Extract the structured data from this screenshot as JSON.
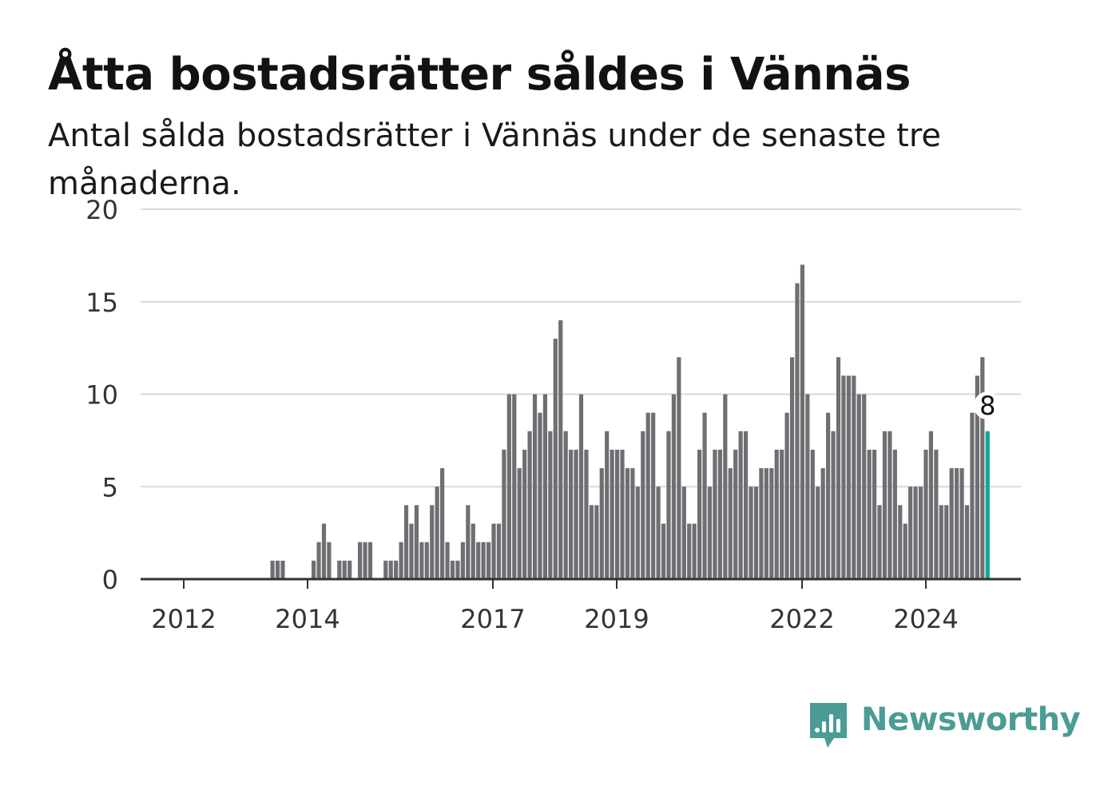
{
  "header": {
    "title": "Åtta bostadsrätter såldes i Vännäs",
    "subtitle": "Antal sålda bostadsrätter i Vännäs under de senaste tre månaderna."
  },
  "colors": {
    "bar": "#6e6e73",
    "highlight": "#11a595",
    "grid": "#d9d9d9",
    "axis": "#333333",
    "brand": "#4a9c94"
  },
  "chart_data": {
    "type": "bar",
    "y_ticks": [
      "0",
      "5",
      "10",
      "15",
      "20"
    ],
    "x_ticks": [
      "2012",
      "2014",
      "2017",
      "2019",
      "2022",
      "2024"
    ],
    "ylim": [
      0,
      20
    ],
    "grid": "horizontal",
    "highlight_label": "8",
    "series": [
      {
        "values": [
          0,
          0,
          0,
          0,
          0,
          0,
          0,
          0,
          0,
          0,
          0,
          0,
          0,
          0,
          0,
          0,
          0,
          0,
          0,
          0,
          0,
          0,
          0,
          0,
          0,
          1,
          1,
          1,
          0,
          0,
          0,
          0,
          0,
          1,
          2,
          3,
          2,
          0,
          1,
          1,
          1,
          0,
          2,
          2,
          2,
          0,
          0,
          1,
          1,
          1,
          2,
          4,
          3,
          4,
          2,
          2,
          4,
          5,
          6,
          2,
          1,
          1,
          2,
          4,
          3,
          2,
          2,
          2,
          3,
          3,
          7,
          10,
          10,
          6,
          7,
          8,
          10,
          9,
          10,
          8,
          13,
          14,
          8,
          7,
          7,
          10,
          7,
          4,
          4,
          6,
          8,
          7,
          7,
          7,
          6,
          6,
          5,
          8,
          9,
          9,
          5,
          3,
          8,
          10,
          12,
          5,
          3,
          3,
          7,
          9,
          5,
          7,
          7,
          10,
          6,
          7,
          8,
          8,
          5,
          5,
          6,
          6,
          6,
          7,
          7,
          9,
          12,
          16,
          17,
          10,
          7,
          5,
          6,
          9,
          8,
          12,
          11,
          11,
          11,
          10,
          10,
          7,
          7,
          4,
          8,
          8,
          7,
          4,
          3,
          5,
          5,
          5,
          7,
          8,
          7,
          4,
          4,
          6,
          6,
          6,
          4,
          9,
          11,
          12,
          8
        ]
      }
    ]
  },
  "brand": {
    "name": "Newsworthy",
    "icon": "newsworthy-logo-icon"
  }
}
